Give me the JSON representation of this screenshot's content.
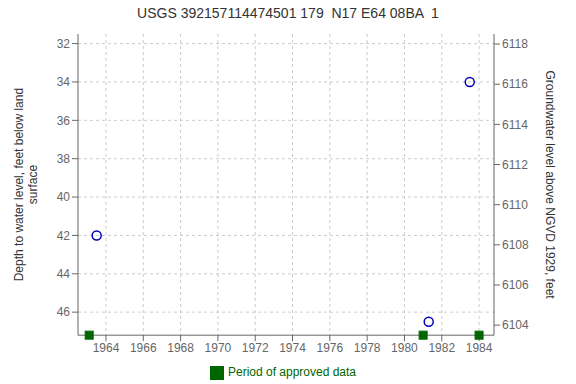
{
  "chart_data": {
    "type": "scatter",
    "title": "USGS 392157114474501 179  N17 E64 08BA  1",
    "ylabel": "Depth to water level, feet below land\nsurface",
    "y2label": "Groundwater level above NGVD 1929, feet",
    "xlim": [
      1962.5,
      1984.8
    ],
    "xticks": [
      1964,
      1966,
      1968,
      1970,
      1972,
      1974,
      1976,
      1978,
      1980,
      1982,
      1984
    ],
    "ylim": [
      47.2,
      31.5
    ],
    "yticks": [
      32,
      34,
      36,
      38,
      40,
      42,
      44,
      46
    ],
    "y2lim": [
      6103.5,
      6118.5
    ],
    "y2ticks": [
      6104,
      6106,
      6108,
      6110,
      6112,
      6114,
      6116,
      6118
    ],
    "grid": true,
    "legend": "bottom",
    "series": [
      {
        "x": [
          1963.5,
          1981.3,
          1983.5
        ],
        "values": [
          42.0,
          46.5,
          34.0
        ],
        "color": "#0000bb",
        "marker": "circle"
      },
      {
        "name": "Period of approved data",
        "x": [
          1963.1,
          1981.0,
          1984.0
        ],
        "values": [
          47.2,
          47.2,
          47.2
        ],
        "color": "#006600",
        "marker": "square"
      }
    ]
  }
}
